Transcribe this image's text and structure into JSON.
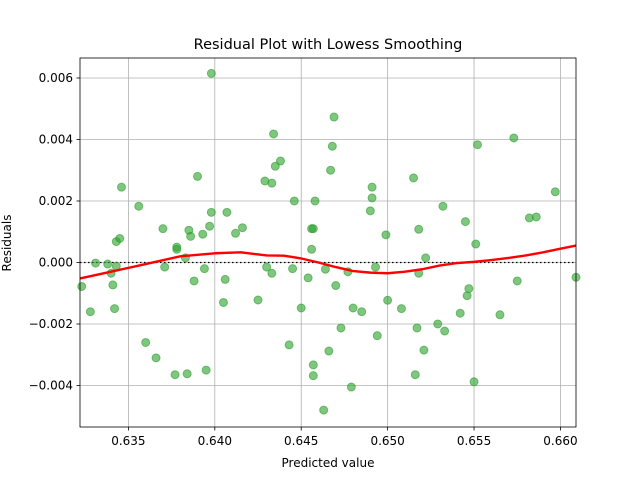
{
  "chart_data": {
    "type": "scatter",
    "title": "Residual Plot with Lowess Smoothing",
    "xlabel": "Predicted value",
    "ylabel": "Residuals",
    "xlim": [
      0.6322,
      0.6609
    ],
    "ylim": [
      -0.00535,
      0.00665
    ],
    "xticks": [
      0.635,
      0.64,
      0.645,
      0.65,
      0.655,
      0.66
    ],
    "xtick_labels": [
      "0.635",
      "0.640",
      "0.645",
      "0.650",
      "0.655",
      "0.660"
    ],
    "yticks": [
      -0.004,
      -0.002,
      0.0,
      0.002,
      0.004,
      0.006
    ],
    "ytick_labels": [
      "−0.004",
      "−0.002",
      "0.000",
      "0.002",
      "0.004",
      "0.006"
    ],
    "grid": true,
    "reference_line": {
      "y": 0,
      "style": "dotted",
      "color": "#000000"
    },
    "colors": {
      "points": "#2ca02c",
      "lowess": "#ff0000"
    },
    "series": [
      {
        "kind": "scatter",
        "points": [
          [
            0.6323,
            -0.00078
          ],
          [
            0.6328,
            -0.0016
          ],
          [
            0.6331,
            -2e-05
          ],
          [
            0.6338,
            -5e-05
          ],
          [
            0.634,
            -0.00035
          ],
          [
            0.6341,
            -0.00073
          ],
          [
            0.6342,
            -0.0015
          ],
          [
            0.6343,
            0.00068
          ],
          [
            0.6343,
            -0.00012
          ],
          [
            0.6345,
            0.00078
          ],
          [
            0.6346,
            0.00245
          ],
          [
            0.6356,
            0.00183
          ],
          [
            0.636,
            -0.0026
          ],
          [
            0.6366,
            -0.0031
          ],
          [
            0.637,
            0.0011
          ],
          [
            0.6371,
            -0.00015
          ],
          [
            0.6377,
            -0.00365
          ],
          [
            0.6378,
            0.00043
          ],
          [
            0.6378,
            0.0005
          ],
          [
            0.6383,
            0.00015
          ],
          [
            0.6384,
            -0.00362
          ],
          [
            0.6385,
            0.00105
          ],
          [
            0.6386,
            0.00085
          ],
          [
            0.6388,
            -0.0006
          ],
          [
            0.639,
            0.0028
          ],
          [
            0.6393,
            0.00092
          ],
          [
            0.6394,
            -0.0002
          ],
          [
            0.6395,
            -0.0035
          ],
          [
            0.6397,
            0.00118
          ],
          [
            0.6398,
            0.00163
          ],
          [
            0.6398,
            0.00615
          ],
          [
            0.6405,
            -0.0013
          ],
          [
            0.6406,
            -0.00055
          ],
          [
            0.6407,
            0.00163
          ],
          [
            0.6412,
            0.00095
          ],
          [
            0.6416,
            0.00113
          ],
          [
            0.6425,
            -0.00122
          ],
          [
            0.6429,
            0.00265
          ],
          [
            0.643,
            -0.00015
          ],
          [
            0.6433,
            0.00258
          ],
          [
            0.6433,
            -0.00035
          ],
          [
            0.6434,
            0.00418
          ],
          [
            0.6435,
            0.00313
          ],
          [
            0.6438,
            0.0033
          ],
          [
            0.6443,
            -0.00268
          ],
          [
            0.6445,
            -0.0002
          ],
          [
            0.6446,
            0.002
          ],
          [
            0.645,
            -0.00148
          ],
          [
            0.6454,
            -0.0005
          ],
          [
            0.6456,
            0.00043
          ],
          [
            0.6456,
            0.0011
          ],
          [
            0.6457,
            -0.00368
          ],
          [
            0.6457,
            -0.00333
          ],
          [
            0.6457,
            0.0011
          ],
          [
            0.6458,
            0.002
          ],
          [
            0.6463,
            -0.0048
          ],
          [
            0.6464,
            -0.00022
          ],
          [
            0.6466,
            -0.00288
          ],
          [
            0.6467,
            0.003
          ],
          [
            0.6468,
            0.00378
          ],
          [
            0.6469,
            0.00473
          ],
          [
            0.647,
            -0.00075
          ],
          [
            0.6473,
            -0.00213
          ],
          [
            0.6477,
            -0.0003
          ],
          [
            0.6479,
            -0.00405
          ],
          [
            0.648,
            -0.00148
          ],
          [
            0.6485,
            -0.0016
          ],
          [
            0.649,
            0.00168
          ],
          [
            0.6491,
            0.00245
          ],
          [
            0.6491,
            0.0021
          ],
          [
            0.6493,
            -0.00015
          ],
          [
            0.6494,
            -0.00238
          ],
          [
            0.6499,
            0.0009
          ],
          [
            0.65,
            -0.00123
          ],
          [
            0.6508,
            -0.0015
          ],
          [
            0.6515,
            0.00275
          ],
          [
            0.6516,
            -0.00365
          ],
          [
            0.6517,
            -0.00213
          ],
          [
            0.6518,
            0.00108
          ],
          [
            0.6518,
            -0.00035
          ],
          [
            0.6521,
            -0.00285
          ],
          [
            0.6522,
            0.00015
          ],
          [
            0.6529,
            -0.002
          ],
          [
            0.6532,
            0.00183
          ],
          [
            0.6533,
            -0.00223
          ],
          [
            0.6542,
            -0.00165
          ],
          [
            0.6545,
            0.00133
          ],
          [
            0.6546,
            -0.00108
          ],
          [
            0.6547,
            -0.00085
          ],
          [
            0.655,
            -0.00388
          ],
          [
            0.6551,
            0.0006
          ],
          [
            0.6552,
            0.00383
          ],
          [
            0.6565,
            -0.0017
          ],
          [
            0.6573,
            0.00405
          ],
          [
            0.6575,
            -0.0006
          ],
          [
            0.6582,
            0.00145
          ],
          [
            0.6586,
            0.00148
          ],
          [
            0.6597,
            0.0023
          ],
          [
            0.6609,
            -0.00048
          ]
        ]
      },
      {
        "kind": "line",
        "points": [
          [
            0.6322,
            -0.00052
          ],
          [
            0.634,
            -0.0003
          ],
          [
            0.636,
            -5e-05
          ],
          [
            0.638,
            0.0002
          ],
          [
            0.64,
            0.0003
          ],
          [
            0.6415,
            0.00033
          ],
          [
            0.643,
            0.00023
          ],
          [
            0.644,
            0.00022
          ],
          [
            0.645,
            0.00013
          ],
          [
            0.646,
            0.0
          ],
          [
            0.647,
            -0.00015
          ],
          [
            0.648,
            -0.00028
          ],
          [
            0.649,
            -0.00033
          ],
          [
            0.65,
            -0.00035
          ],
          [
            0.651,
            -0.0003
          ],
          [
            0.652,
            -0.00022
          ],
          [
            0.653,
            -0.0001
          ],
          [
            0.654,
            -2e-05
          ],
          [
            0.655,
            2e-05
          ],
          [
            0.656,
            8e-05
          ],
          [
            0.657,
            0.00015
          ],
          [
            0.658,
            0.00023
          ],
          [
            0.659,
            0.00033
          ],
          [
            0.66,
            0.00045
          ],
          [
            0.6609,
            0.00055
          ]
        ]
      }
    ]
  }
}
